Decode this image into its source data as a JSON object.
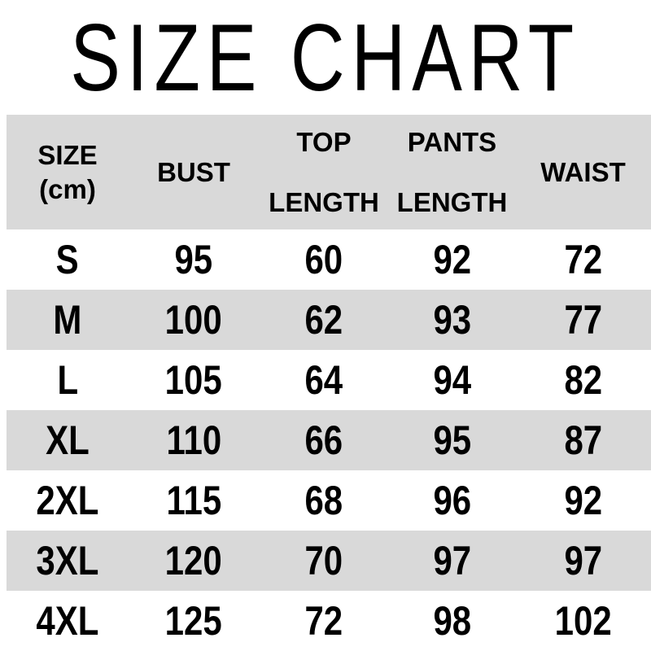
{
  "title": "SIZE CHART",
  "colors": {
    "stripe": "#d9d9d9",
    "row_background": "#ffffff",
    "text": "#000000"
  },
  "table": {
    "header": {
      "size_line1": "SIZE",
      "size_line2": "(cm)",
      "bust": "BUST",
      "top_line1": "TOP",
      "top_line2": "LENGTH",
      "pants_line1": "PANTS",
      "pants_line2": "LENGTH",
      "waist": "WAIST"
    },
    "rows": [
      {
        "size": "S",
        "bust": "95",
        "top_length": "60",
        "pants_length": "92",
        "waist": "72"
      },
      {
        "size": "M",
        "bust": "100",
        "top_length": "62",
        "pants_length": "93",
        "waist": "77"
      },
      {
        "size": "L",
        "bust": "105",
        "top_length": "64",
        "pants_length": "94",
        "waist": "82"
      },
      {
        "size": "XL",
        "bust": "110",
        "top_length": "66",
        "pants_length": "95",
        "waist": "87"
      },
      {
        "size": "2XL",
        "bust": "115",
        "top_length": "68",
        "pants_length": "96",
        "waist": "92"
      },
      {
        "size": "3XL",
        "bust": "120",
        "top_length": "70",
        "pants_length": "97",
        "waist": "97"
      },
      {
        "size": "4XL",
        "bust": "125",
        "top_length": "72",
        "pants_length": "98",
        "waist": "102"
      }
    ]
  },
  "chart_data": {
    "type": "table",
    "title": "SIZE CHART",
    "unit": "cm",
    "columns": [
      "SIZE (cm)",
      "BUST",
      "TOP LENGTH",
      "PANTS LENGTH",
      "WAIST"
    ],
    "rows": [
      [
        "S",
        95,
        60,
        92,
        72
      ],
      [
        "M",
        100,
        62,
        93,
        77
      ],
      [
        "L",
        105,
        64,
        94,
        82
      ],
      [
        "XL",
        110,
        66,
        95,
        87
      ],
      [
        "2XL",
        115,
        68,
        96,
        92
      ],
      [
        "3XL",
        120,
        70,
        97,
        97
      ],
      [
        "4XL",
        125,
        72,
        98,
        102
      ]
    ]
  }
}
